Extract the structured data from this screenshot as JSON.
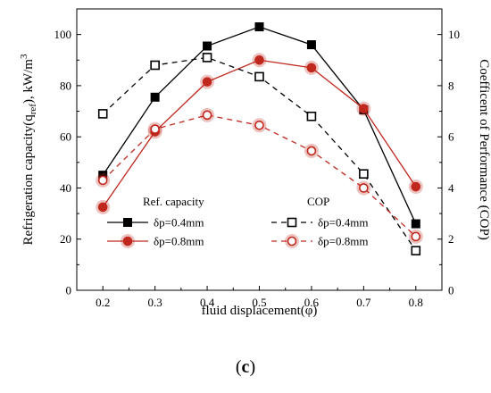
{
  "chart_data": {
    "type": "line",
    "x": [
      0.2,
      0.3,
      0.4,
      0.5,
      0.6,
      0.7,
      0.8
    ],
    "xlabel": "fluid displacement(φ)",
    "xlim": [
      0.15,
      0.85
    ],
    "xticks": [
      "0.2",
      "0.3",
      "0.4",
      "0.5",
      "0.6",
      "0.7",
      "0.8"
    ],
    "ylabel_left": {
      "pre": "Refrigeration capacity(q",
      "sub": "ref",
      "mid": "), kW/m",
      "sup": "3"
    },
    "ylim_left": [
      0,
      110
    ],
    "yticks_left": [
      "0",
      "20",
      "40",
      "60",
      "80",
      "100"
    ],
    "ylabel_right": "Coefficent of Performance (COP)",
    "ylim_right": [
      0,
      11
    ],
    "yticks_right": [
      "0",
      "2",
      "4",
      "6",
      "8",
      "10"
    ],
    "grid": false,
    "legend_position": "bottom-center",
    "legend": {
      "group_left_title": "Ref. capacity",
      "group_right_title": "COP",
      "labels": [
        "δp=0.4mm",
        "δp=0.8mm",
        "δp=0.4mm",
        "δp=0.8mm"
      ]
    },
    "series": [
      {
        "group": "Ref. capacity",
        "label": "δp=0.4mm",
        "axis": "left",
        "color": "#000000",
        "marker": "square-filled",
        "dash": false,
        "values": [
          45,
          75.5,
          95.5,
          103,
          96,
          70.5,
          26
        ]
      },
      {
        "group": "Ref. capacity",
        "label": "δp=0.8mm",
        "axis": "left",
        "color": "#c0281e",
        "marker": "circle-filled",
        "dash": false,
        "values": [
          32.5,
          62,
          81.5,
          90,
          87,
          71,
          40.5
        ]
      },
      {
        "group": "COP",
        "label": "δp=0.4mm",
        "axis": "right",
        "color": "#000000",
        "marker": "square-open",
        "dash": true,
        "values": [
          6.9,
          8.8,
          9.1,
          8.35,
          6.8,
          4.55,
          1.55
        ]
      },
      {
        "group": "COP",
        "label": "δp=0.8mm",
        "axis": "right",
        "color": "#c0281e",
        "marker": "circle-open",
        "dash": true,
        "values": [
          4.3,
          6.3,
          6.85,
          6.45,
          5.45,
          4.0,
          2.1
        ]
      }
    ]
  },
  "panel_label": "(c)",
  "panel_label_parts": {
    "open": "(",
    "letter": "c",
    "close": ")"
  }
}
